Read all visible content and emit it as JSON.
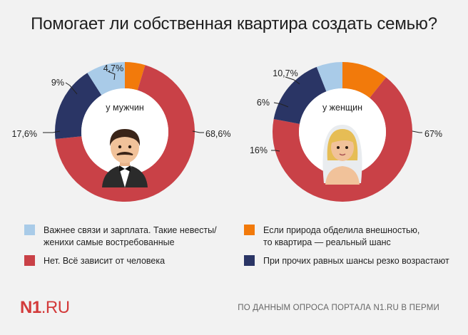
{
  "title": "Помогает ли собственная квартира создать семью?",
  "colors": {
    "light_blue": "#a9cbe8",
    "orange": "#f27a0b",
    "red": "#c94147",
    "navy": "#2a3565"
  },
  "chart_data": [
    {
      "type": "pie",
      "title": "у мужчин",
      "slices": [
        {
          "category": "orange",
          "value": 4.7,
          "label": "4,7%"
        },
        {
          "category": "red",
          "value": 68.6,
          "label": "68,6%"
        },
        {
          "category": "navy",
          "value": 17.6,
          "label": "17,6%"
        },
        {
          "category": "light_blue",
          "value": 9,
          "label": "9%"
        }
      ]
    },
    {
      "type": "pie",
      "title": "у женщин",
      "slices": [
        {
          "category": "orange",
          "value": 10.7,
          "label": "10,7%"
        },
        {
          "category": "red",
          "value": 67,
          "label": "67%"
        },
        {
          "category": "navy",
          "value": 16,
          "label": "16%"
        },
        {
          "category": "light_blue",
          "value": 6,
          "label": "6%"
        }
      ]
    }
  ],
  "legend": {
    "light_blue": "Важнее связи и зарплата. Такие невесты/ женихи самые востребованные",
    "orange": "Если природа обделила внешностью, то квартира — реальный шанс",
    "red": "Нет. Всё зависит от человека",
    "navy": "При прочих равных шансы резко возрастают"
  },
  "footer": {
    "brand_bold": "N1",
    "brand_rest": ".RU",
    "source": "ПО ДАННЫМ ОПРОСА ПОРТАЛА N1.RU В ПЕРМИ"
  }
}
